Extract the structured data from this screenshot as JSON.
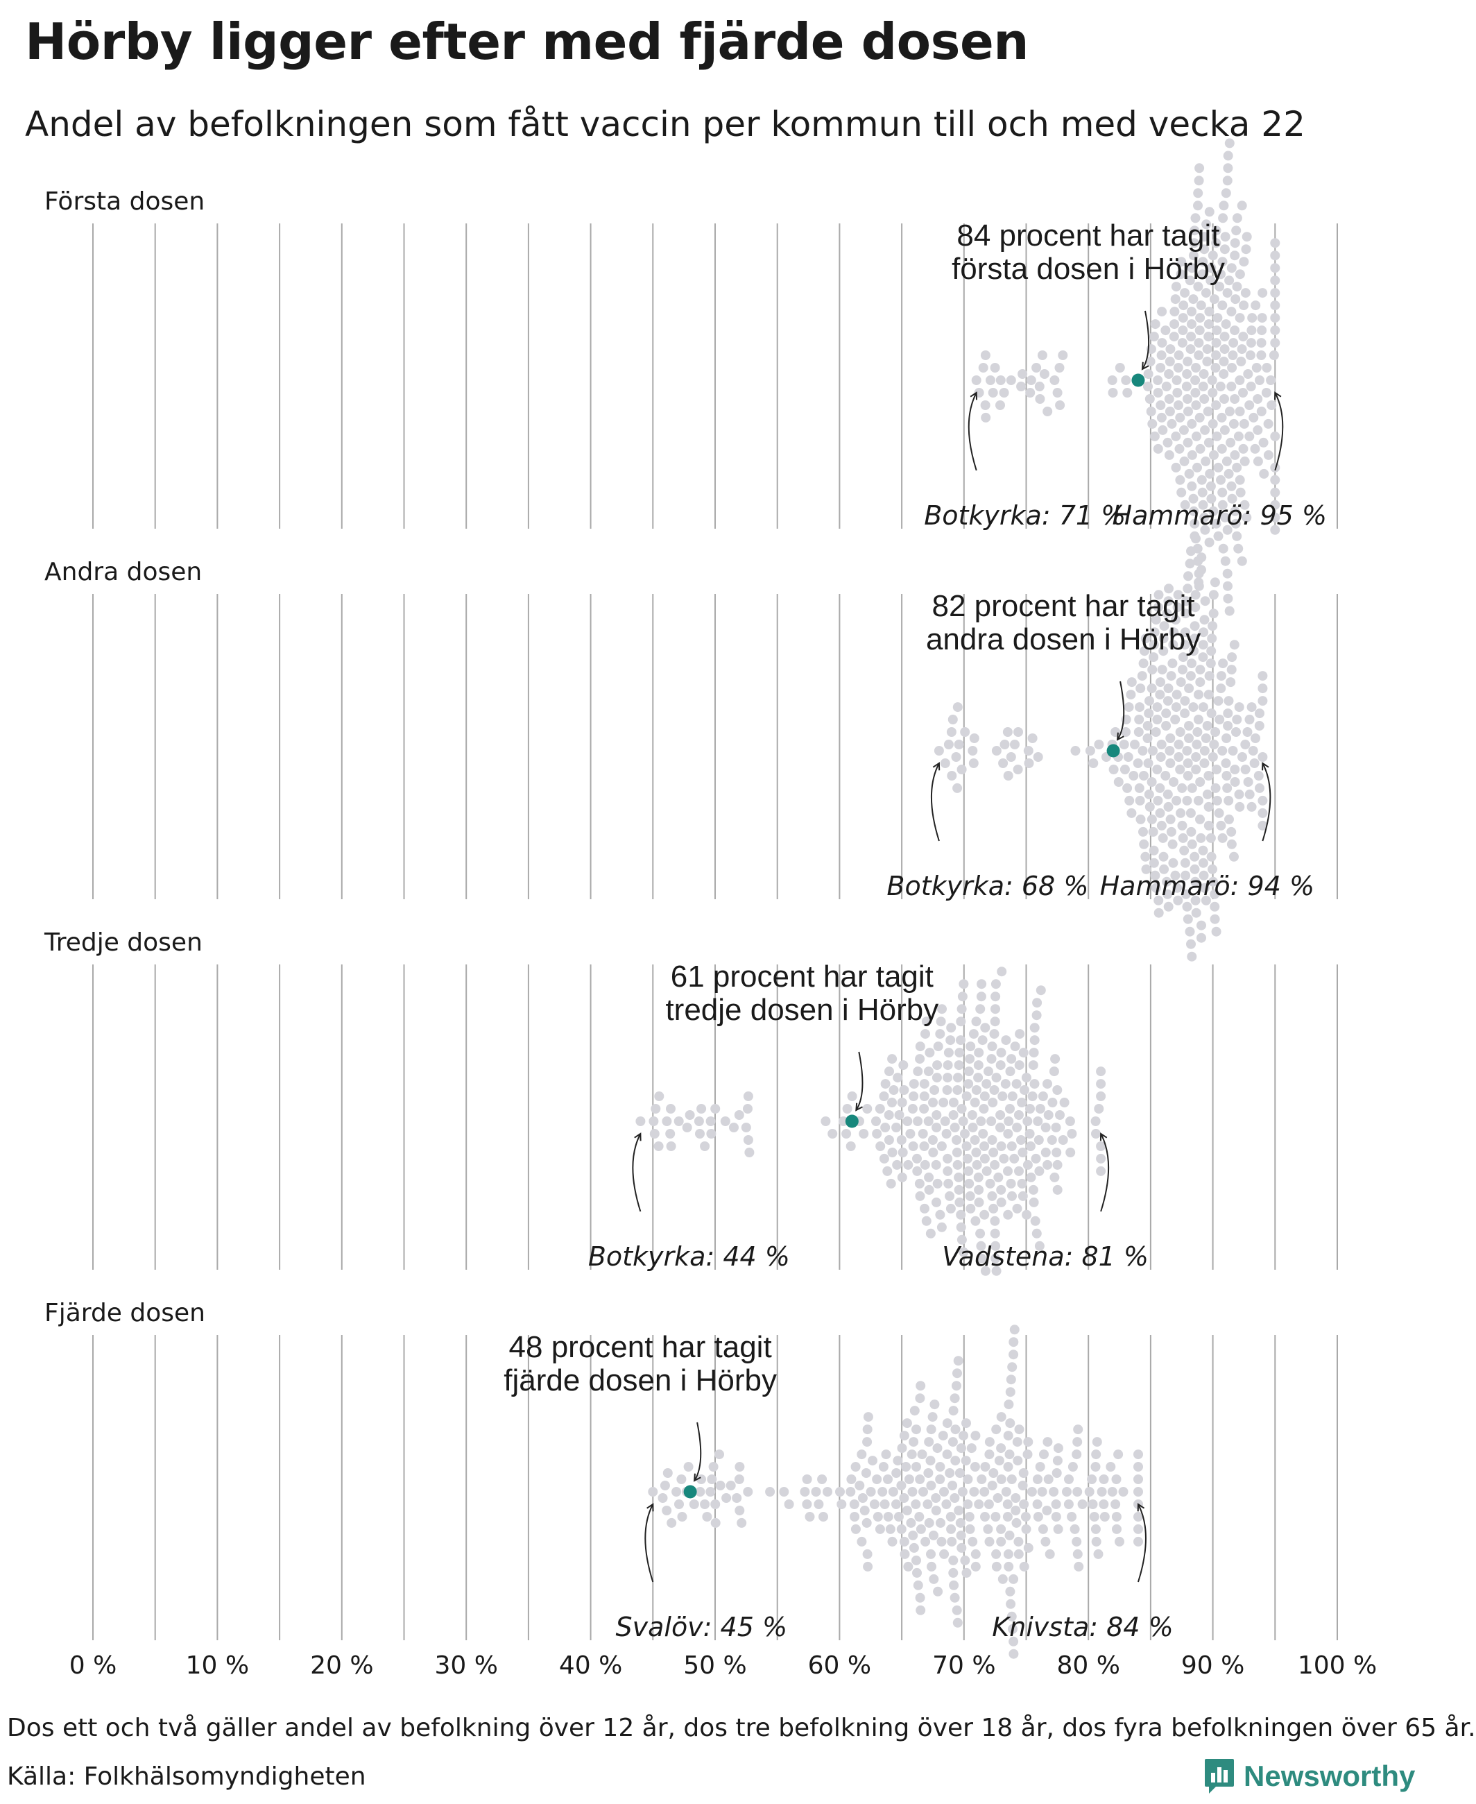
{
  "title": "Hörby ligger efter med fjärde dosen",
  "subtitle": "Andel av befolkningen som fått vaccin per kommun till och med vecka 22",
  "footnote": "Dos ett och två gäller andel av befolkning över 12 år, dos tre befolkning över 18 år, dos fyra befolkningen över 65 år.",
  "source": "Källa: Folkhälsomyndigheten",
  "brand": "Newsworthy",
  "colors": {
    "highlight": "#17877c",
    "dots": "#d4d4da",
    "gridline": "#a9a9a9",
    "brand": "#2e8b7f"
  },
  "chart_data": {
    "type": "scatter",
    "subtype": "beeswarm",
    "x_axis": {
      "range": [
        0,
        100
      ],
      "ticks": [
        0,
        10,
        20,
        30,
        40,
        50,
        60,
        70,
        80,
        90,
        100
      ],
      "tick_labels": [
        "0 %",
        "10 %",
        "20 %",
        "30 %",
        "40 %",
        "50 %",
        "60 %",
        "70 %",
        "80 %",
        "90 %",
        "100 %"
      ]
    },
    "panels": [
      {
        "label": "Första dosen",
        "highlight": {
          "name": "Hörby",
          "value": 84,
          "annotation": [
            "84 procent har tagit",
            "första dosen i Hörby"
          ]
        },
        "min": {
          "label": "Botkyrka: 71 %",
          "value": 71
        },
        "max": {
          "label": "Hammarö: 95 %",
          "value": 95
        },
        "distribution": {
          "center": 90,
          "spread": 3.0,
          "tail_low": 76.5,
          "count": 290
        }
      },
      {
        "label": "Andra dosen",
        "highlight": {
          "name": "Hörby",
          "value": 82,
          "annotation": [
            "82 procent har tagit",
            "andra dosen i Hörby"
          ]
        },
        "min": {
          "label": "Botkyrka: 68 %",
          "value": 68
        },
        "max": {
          "label": "Hammarö: 94 %",
          "value": 94
        },
        "distribution": {
          "center": 88,
          "spread": 3.1,
          "tail_low": 74,
          "count": 290
        }
      },
      {
        "label": "Tredje dosen",
        "highlight": {
          "name": "Hörby",
          "value": 61,
          "annotation": [
            "61 procent har tagit",
            "tredje dosen i Hörby"
          ]
        },
        "min": {
          "label": "Botkyrka: 44 %",
          "value": 44
        },
        "max": {
          "label": "Vadstena: 81 %",
          "value": 81
        },
        "distribution": {
          "center": 71,
          "spread": 4.5,
          "tail_low": 51,
          "count": 290
        }
      },
      {
        "label": "Fjärde dosen",
        "highlight": {
          "name": "Hörby",
          "value": 48,
          "annotation": [
            "48 procent har tagit",
            "fjärde dosen i Hörby"
          ]
        },
        "min": {
          "label": "Svalöv: 45 %",
          "value": 45
        },
        "max": {
          "label": "Knivsta: 84 %",
          "value": 84
        },
        "distribution": {
          "center": 70,
          "spread": 7.0,
          "tail_low": 50,
          "count": 290
        }
      }
    ]
  }
}
